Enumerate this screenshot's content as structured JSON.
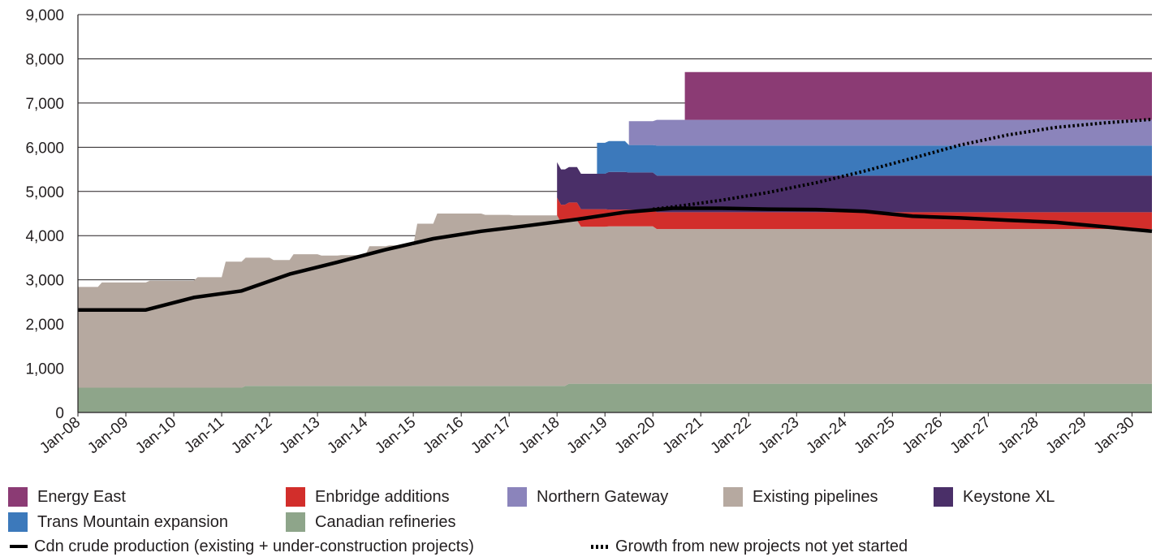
{
  "chart_data": {
    "type": "area",
    "ylim": [
      0,
      9000
    ],
    "y_ticks": [
      "0",
      "1,000",
      "2,000",
      "3,000",
      "4,000",
      "5,000",
      "6,000",
      "7,000",
      "8,000",
      "9,000"
    ],
    "x_ticks": [
      "Jan-08",
      "Jan-09",
      "Jan-10",
      "Jan-11",
      "Jan-12",
      "Jan-13",
      "Jan-14",
      "Jan-15",
      "Jan-16",
      "Jan-17",
      "Jan-18",
      "Jan-19",
      "Jan-20",
      "Jan-21",
      "Jan-22",
      "Jan-23",
      "Jan-24",
      "Jan-25",
      "Jan-26",
      "Jan-27",
      "Jan-28",
      "Jan-29",
      "Jan-30"
    ],
    "x_range": [
      "Jan-08",
      "Jun-30"
    ],
    "grid": "horizontal",
    "legend_position": "bottom",
    "colors": {
      "energy_east": "#8b3b74",
      "enbridge": "#d22e2b",
      "northern_gateway": "#8b84bb",
      "existing": "#b6a9a0",
      "keystone": "#4a2f68",
      "trans_mountain": "#3c79bb",
      "refineries": "#8ea58a",
      "line": "#000000"
    },
    "series": [
      {
        "name": "Canadian refineries",
        "key": "refineries",
        "x": [
          "Jan-08",
          "Jun-11",
          "Jul-11",
          "Mar-18",
          "Apr-18",
          "Jun-30"
        ],
        "values": [
          560,
          560,
          600,
          600,
          650,
          650
        ]
      },
      {
        "name": "Existing pipelines",
        "key": "existing",
        "x": [
          "Jan-08",
          "Jun-08",
          "Jul-08",
          "Jun-09",
          "Jul-09",
          "Jun-10",
          "Jul-10",
          "Jan-11",
          "Feb-11",
          "Jun-11",
          "Jul-11",
          "Jan-12",
          "Feb-12",
          "Jun-12",
          "Jul-12",
          "Jan-13",
          "Feb-13",
          "Jun-13",
          "Jul-13",
          "Jan-14",
          "Feb-14",
          "Jun-14",
          "Jul-14",
          "Jan-15",
          "Feb-15",
          "Jun-15",
          "Jul-15",
          "Jan-16",
          "Feb-16",
          "Jun-16",
          "Jul-16",
          "Jan-17",
          "Feb-17",
          "Jun-17",
          "Jul-17",
          "Jan-18",
          "Feb-18",
          "Jun-18",
          "Jul-18",
          "Jan-19",
          "Feb-19",
          "Jun-19",
          "Jul-19",
          "Jan-20",
          "Feb-20",
          "Jun-30"
        ],
        "values": [
          2280,
          2280,
          2380,
          2380,
          2420,
          2420,
          2500,
          2500,
          2850,
          2850,
          2900,
          2900,
          2850,
          2850,
          2980,
          2980,
          2950,
          2950,
          2960,
          2960,
          3160,
          3160,
          3180,
          3180,
          3670,
          3670,
          3900,
          3900,
          3900,
          3900,
          3870,
          3870,
          3860,
          3860,
          3860,
          3860,
          3700,
          3700,
          3550,
          3550,
          3560,
          3560,
          3560,
          3560,
          3500,
          3500
        ]
      },
      {
        "name": "Enbridge additions",
        "key": "enbridge",
        "x": [
          "Jan-18",
          "Jun-18",
          "Jul-18",
          "Jan-19",
          "Feb-19",
          "Jun-30"
        ],
        "values": [
          400,
          400,
          400,
          400,
          380,
          380
        ]
      },
      {
        "name": "Keystone XL",
        "key": "keystone",
        "x": [
          "Jan-18",
          "Jun-18",
          "Jul-18",
          "Jan-19",
          "Feb-19",
          "Jun-19",
          "Jul-19",
          "Jan-20",
          "Feb-20",
          "Jun-30"
        ],
        "values": [
          800,
          800,
          800,
          800,
          850,
          850,
          840,
          840,
          830,
          830
        ]
      },
      {
        "name": "Trans Mountain expansion",
        "key": "trans_mountain",
        "x": [
          "Nov-18",
          "Jun-19",
          "Jul-19",
          "Jan-20",
          "Feb-20",
          "Jun-30"
        ],
        "values": [
          700,
          700,
          620,
          620,
          680,
          680
        ]
      },
      {
        "name": "Northern Gateway",
        "key": "northern_gateway",
        "x": [
          "Jul-19",
          "Jan-20",
          "Feb-20",
          "Jun-30"
        ],
        "values": [
          540,
          540,
          580,
          580
        ]
      },
      {
        "name": "Energy East",
        "key": "energy_east",
        "x": [
          "Sep-20",
          "Jun-30"
        ],
        "values": [
          1080,
          1080
        ]
      },
      {
        "name": "Cdn crude production (existing + under-construction projects)",
        "key": "production",
        "x": [
          "Jan-08",
          "Jun-09",
          "Jun-10",
          "Jun-11",
          "Jun-12",
          "Jun-13",
          "Jun-14",
          "Jun-15",
          "Jun-16",
          "Jun-17",
          "Jun-18",
          "Jun-19",
          "Jun-20",
          "Jun-21",
          "Jun-22",
          "Jun-23",
          "Jun-24",
          "Jun-25",
          "Jun-26",
          "Jun-27",
          "Jun-28",
          "Jun-29",
          "Jun-30"
        ],
        "values": [
          2320,
          2320,
          2600,
          2750,
          3130,
          3400,
          3680,
          3930,
          4100,
          4230,
          4370,
          4530,
          4620,
          4620,
          4600,
          4590,
          4550,
          4440,
          4400,
          4350,
          4300,
          4200,
          4100
        ]
      },
      {
        "name": "Growth from new projects not yet started",
        "key": "growth",
        "x": [
          "Jan-20",
          "Jun-20",
          "Jun-21",
          "Jun-22",
          "Jun-23",
          "Jun-24",
          "Jun-25",
          "Jun-26",
          "Jun-27",
          "Jun-28",
          "Jun-29",
          "Jun-30"
        ],
        "values": [
          4600,
          4650,
          4800,
          4980,
          5200,
          5460,
          5750,
          6050,
          6280,
          6450,
          6550,
          6630
        ]
      }
    ]
  },
  "legend": {
    "energy_east": "Energy East",
    "enbridge": "Enbridge additions",
    "northern_gateway": "Northern Gateway",
    "existing": "Existing pipelines",
    "keystone": "Keystone XL",
    "trans_mountain": "Trans Mountain expansion",
    "refineries": "Canadian refineries",
    "production": "Cdn crude production (existing + under-construction projects)",
    "growth": "Growth from new projects not yet started"
  }
}
